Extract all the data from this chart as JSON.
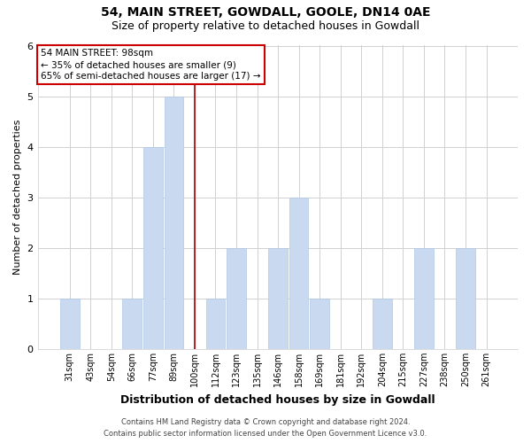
{
  "title": "54, MAIN STREET, GOWDALL, GOOLE, DN14 0AE",
  "subtitle": "Size of property relative to detached houses in Gowdall",
  "xlabel": "Distribution of detached houses by size in Gowdall",
  "ylabel": "Number of detached properties",
  "bin_labels": [
    "31sqm",
    "43sqm",
    "54sqm",
    "66sqm",
    "77sqm",
    "89sqm",
    "100sqm",
    "112sqm",
    "123sqm",
    "135sqm",
    "146sqm",
    "158sqm",
    "169sqm",
    "181sqm",
    "192sqm",
    "204sqm",
    "215sqm",
    "227sqm",
    "238sqm",
    "250sqm",
    "261sqm"
  ],
  "bar_heights": [
    1,
    0,
    0,
    1,
    4,
    5,
    0,
    1,
    2,
    0,
    2,
    3,
    1,
    0,
    0,
    1,
    0,
    2,
    0,
    2,
    0
  ],
  "highlight_line_index": 6,
  "bar_color": "#c9daf0",
  "highlight_line_color": "#aa0000",
  "ylim": [
    0,
    6
  ],
  "yticks": [
    0,
    1,
    2,
    3,
    4,
    5,
    6
  ],
  "annotation_text": "54 MAIN STREET: 98sqm\n← 35% of detached houses are smaller (9)\n65% of semi-detached houses are larger (17) →",
  "annotation_box_facecolor": "#ffffff",
  "annotation_box_edgecolor": "#cc0000",
  "footer_line1": "Contains HM Land Registry data © Crown copyright and database right 2024.",
  "footer_line2": "Contains public sector information licensed under the Open Government Licence v3.0.",
  "bg_color": "#ffffff",
  "grid_color": "#d0d0d0",
  "title_fontsize": 10,
  "subtitle_fontsize": 9,
  "ylabel_fontsize": 8,
  "xlabel_fontsize": 9,
  "tick_fontsize": 7,
  "annotation_fontsize": 7.5,
  "footer_fontsize": 6
}
